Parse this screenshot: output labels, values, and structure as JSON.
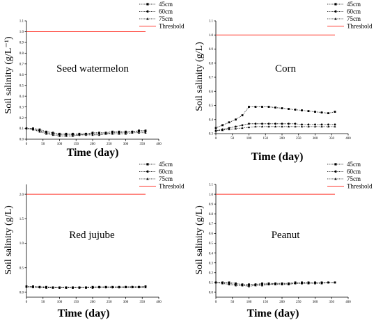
{
  "chart_data": [
    {
      "type": "line",
      "title": "Seed watermelon",
      "xlabel": "Time (day)",
      "ylabel": "Soil salinity (g/L⁻¹)",
      "xlim": [
        0,
        400
      ],
      "ylim": [
        0,
        1.1
      ],
      "xticks": [
        0,
        50,
        100,
        150,
        200,
        250,
        300,
        350,
        400
      ],
      "yticks": [
        0.0,
        0.1,
        0.2,
        0.3,
        0.4,
        0.5,
        0.6,
        0.7,
        0.8,
        0.9,
        1.0,
        1.1
      ],
      "legend_position": "top-right",
      "threshold": {
        "name": "Threshold",
        "value": 1.0,
        "color": "#ff3b30"
      },
      "x": [
        0,
        20,
        40,
        60,
        80,
        100,
        120,
        140,
        160,
        180,
        200,
        220,
        240,
        260,
        280,
        300,
        320,
        340,
        360
      ],
      "series": [
        {
          "name": "45cm",
          "marker": "square",
          "values": [
            0.1,
            0.1,
            0.09,
            0.07,
            0.06,
            0.05,
            0.05,
            0.05,
            0.05,
            0.05,
            0.06,
            0.06,
            0.06,
            0.07,
            0.07,
            0.07,
            0.07,
            0.08,
            0.08
          ]
        },
        {
          "name": "60cm",
          "marker": "circle",
          "values": [
            0.1,
            0.09,
            0.08,
            0.06,
            0.05,
            0.04,
            0.04,
            0.04,
            0.04,
            0.05,
            0.05,
            0.05,
            0.05,
            0.06,
            0.06,
            0.06,
            0.07,
            0.07,
            0.07
          ]
        },
        {
          "name": "75cm",
          "marker": "triangle",
          "values": [
            0.1,
            0.09,
            0.07,
            0.05,
            0.04,
            0.03,
            0.03,
            0.03,
            0.04,
            0.04,
            0.04,
            0.04,
            0.05,
            0.05,
            0.05,
            0.05,
            0.06,
            0.06,
            0.06
          ]
        }
      ]
    },
    {
      "type": "line",
      "title": "Corn",
      "xlabel": "Time (day)",
      "ylabel": "Soil salinity (g/L)",
      "xlim": [
        0,
        400
      ],
      "ylim": [
        0.3,
        1.1
      ],
      "xticks": [
        0,
        50,
        100,
        150,
        200,
        250,
        300,
        350,
        400
      ],
      "yticks": [
        0.3,
        0.4,
        0.5,
        0.6,
        0.7,
        0.8,
        0.9,
        1.0,
        1.1
      ],
      "legend_position": "top-right",
      "threshold": {
        "name": "Threshold",
        "value": 1.0,
        "color": "#ff3b30"
      },
      "x": [
        0,
        20,
        40,
        60,
        80,
        100,
        120,
        140,
        160,
        180,
        200,
        220,
        240,
        260,
        280,
        300,
        320,
        340,
        360
      ],
      "series": [
        {
          "name": "45cm",
          "marker": "square",
          "values": [
            0.34,
            0.36,
            0.38,
            0.4,
            0.43,
            0.49,
            0.49,
            0.49,
            0.49,
            0.485,
            0.48,
            0.475,
            0.47,
            0.465,
            0.46,
            0.455,
            0.45,
            0.445,
            0.455
          ]
        },
        {
          "name": "60cm",
          "marker": "circle",
          "values": [
            0.32,
            0.33,
            0.34,
            0.35,
            0.36,
            0.37,
            0.37,
            0.37,
            0.37,
            0.37,
            0.37,
            0.37,
            0.37,
            0.365,
            0.365,
            0.365,
            0.365,
            0.365,
            0.365
          ]
        },
        {
          "name": "75cm",
          "marker": "triangle",
          "values": [
            0.32,
            0.325,
            0.33,
            0.335,
            0.34,
            0.345,
            0.35,
            0.35,
            0.35,
            0.35,
            0.35,
            0.35,
            0.35,
            0.35,
            0.35,
            0.35,
            0.35,
            0.35,
            0.35
          ]
        }
      ]
    },
    {
      "type": "line",
      "title": "Red jujube",
      "xlabel": "Time (day)",
      "ylabel": "Soil salinity (g/L)",
      "xlim": [
        0,
        400
      ],
      "ylim": [
        -0.1,
        2.2
      ],
      "xticks": [
        0,
        50,
        100,
        150,
        200,
        250,
        300,
        350,
        400
      ],
      "yticks": [
        0.0,
        0.5,
        1.0,
        1.5,
        2.0
      ],
      "legend_position": "top-right",
      "threshold": {
        "name": "Threshold",
        "value": 2.0,
        "color": "#ff3b30"
      },
      "x": [
        0,
        20,
        40,
        60,
        80,
        100,
        120,
        140,
        160,
        180,
        200,
        220,
        240,
        260,
        280,
        300,
        320,
        340,
        360
      ],
      "series": [
        {
          "name": "45cm",
          "marker": "square",
          "values": [
            0.12,
            0.12,
            0.11,
            0.11,
            0.1,
            0.1,
            0.1,
            0.1,
            0.1,
            0.1,
            0.11,
            0.11,
            0.11,
            0.11,
            0.11,
            0.11,
            0.11,
            0.11,
            0.12
          ]
        },
        {
          "name": "60cm",
          "marker": "circle",
          "values": [
            0.11,
            0.11,
            0.1,
            0.1,
            0.1,
            0.09,
            0.09,
            0.09,
            0.1,
            0.1,
            0.1,
            0.1,
            0.1,
            0.1,
            0.1,
            0.11,
            0.11,
            0.11,
            0.11
          ]
        },
        {
          "name": "75cm",
          "marker": "triangle",
          "values": [
            0.11,
            0.1,
            0.1,
            0.09,
            0.09,
            0.09,
            0.09,
            0.09,
            0.09,
            0.09,
            0.09,
            0.1,
            0.1,
            0.1,
            0.1,
            0.1,
            0.1,
            0.1,
            0.1
          ]
        }
      ]
    },
    {
      "type": "line",
      "title": "Peanut",
      "xlabel": "Time (day)",
      "ylabel": "Soil salinity (g/L)",
      "xlim": [
        0,
        400
      ],
      "ylim": [
        -0.05,
        1.1
      ],
      "xticks": [
        0,
        50,
        100,
        150,
        200,
        250,
        300,
        350,
        400
      ],
      "yticks": [
        0.0,
        0.1,
        0.2,
        0.3,
        0.4,
        0.5,
        0.6,
        0.7,
        0.8,
        0.9,
        1.0,
        1.1
      ],
      "legend_position": "top-right",
      "threshold": {
        "name": "Threshold",
        "value": 1.0,
        "color": "#ff3b30"
      },
      "x": [
        0,
        20,
        40,
        60,
        80,
        100,
        120,
        140,
        160,
        180,
        200,
        220,
        240,
        260,
        280,
        300,
        320,
        340,
        360
      ],
      "series": [
        {
          "name": "45cm",
          "marker": "square",
          "values": [
            0.1,
            0.1,
            0.1,
            0.09,
            0.08,
            0.08,
            0.08,
            0.09,
            0.09,
            0.09,
            0.09,
            0.09,
            0.1,
            0.1,
            0.1,
            0.1,
            0.1,
            0.1,
            0.1
          ]
        },
        {
          "name": "60cm",
          "marker": "circle",
          "values": [
            0.1,
            0.1,
            0.09,
            0.08,
            0.07,
            0.07,
            0.08,
            0.08,
            0.08,
            0.09,
            0.09,
            0.09,
            0.09,
            0.09,
            0.1,
            0.1,
            0.1,
            0.1,
            0.1
          ]
        },
        {
          "name": "75cm",
          "marker": "triangle",
          "values": [
            0.1,
            0.09,
            0.08,
            0.07,
            0.07,
            0.06,
            0.07,
            0.07,
            0.08,
            0.08,
            0.08,
            0.08,
            0.09,
            0.09,
            0.09,
            0.09,
            0.09,
            0.1,
            0.1
          ]
        }
      ]
    }
  ]
}
